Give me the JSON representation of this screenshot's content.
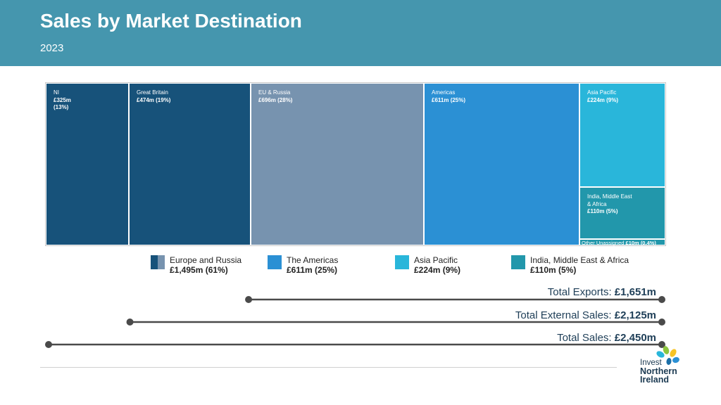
{
  "header": {
    "title": "Sales by Market Destination",
    "subtitle": "2023"
  },
  "colors": {
    "header_bg": "#4596ae",
    "dark_navy": "#17527a",
    "eu_grey_blue": "#7793af",
    "americas_blue": "#2b90d4",
    "asia_cyan": "#29b6da",
    "imea_teal": "#2297ab",
    "line": "#4a4a4a"
  },
  "chart_data": [
    {
      "type": "treemap",
      "title": "",
      "unit": "£m",
      "items": [
        {
          "label": "NI",
          "value": 325,
          "value_text": "£325m",
          "pct_text": "(13%)",
          "color": "#17527a"
        },
        {
          "label": "Great Britain",
          "value": 474,
          "value_text": "£474m (19%)",
          "color": "#17527a"
        },
        {
          "label": "EU & Russia",
          "value": 696,
          "value_text": "£696m (28%)",
          "color": "#7793af"
        },
        {
          "label": "Americas",
          "value": 611,
          "value_text": "£611m (25%)",
          "color": "#2b90d4"
        },
        {
          "label": "Asia Pacific",
          "value": 224,
          "value_text": "£224m (9%)",
          "color": "#29b6da"
        },
        {
          "label": "India, Middle East & Africa",
          "value": 110,
          "value_text": "£110m (5%)",
          "color": "#2297ab"
        },
        {
          "label": "Other Unassigned",
          "value": 10,
          "value_text": "£10m (0.4%)",
          "color": "#2297ab"
        }
      ],
      "legend": [
        {
          "label": "Europe and Russia",
          "value_text": "£1,495m (61%)",
          "colors": [
            "#17527a",
            "#7793af"
          ]
        },
        {
          "label": "The Americas",
          "value_text": "£611m (25%)",
          "colors": [
            "#2b90d4"
          ]
        },
        {
          "label": "Asia Pacific",
          "value_text": "£224m (9%)",
          "colors": [
            "#29b6da"
          ]
        },
        {
          "label": "India, Middle East & Africa",
          "value_text": "£110m (5%)",
          "colors": [
            "#2297ab"
          ]
        }
      ]
    },
    {
      "type": "totals",
      "items": [
        {
          "label": "Total Exports:",
          "value": 1651,
          "value_text": "£1,651m"
        },
        {
          "label": "Total External Sales:",
          "value": 2125,
          "value_text": "£2,125m"
        },
        {
          "label": "Total Sales:",
          "value": 2450,
          "value_text": "£2,450m"
        }
      ]
    }
  ],
  "logo": {
    "line1": "Invest",
    "line2": "Northern",
    "line3": "Ireland"
  }
}
